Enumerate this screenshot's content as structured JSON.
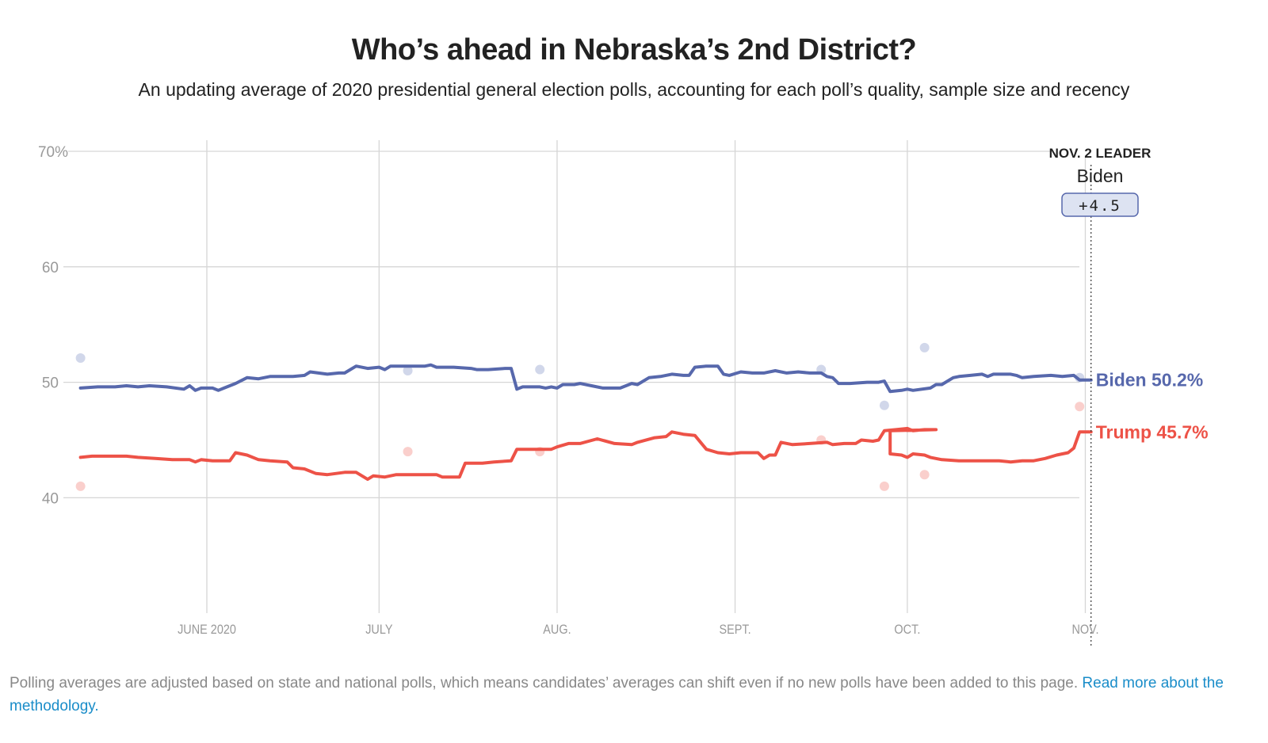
{
  "header": {
    "title": "Who’s ahead in Nebraska’s 2nd District?",
    "subtitle": "An updating average of 2020 presidential general election polls, accounting for each poll’s quality, sample size and recency"
  },
  "leader": {
    "label": "NOV. 2 LEADER",
    "name": "Biden",
    "margin": "+4.5"
  },
  "footnote": {
    "text": "Polling averages are adjusted based on state and national polls, which means candidates’ averages can shift even if no new polls have been added to this page. ",
    "link_text": "Read more about the methodology."
  },
  "chart_data": {
    "type": "line",
    "title": "Who’s ahead in Nebraska’s 2nd District?",
    "xlabel": "",
    "ylabel": "",
    "ylim": [
      30,
      70
    ],
    "xlim": [
      "2020-05-10",
      "2020-11-02"
    ],
    "grid": true,
    "y_ticks": [
      {
        "value": 70,
        "label": "70%"
      },
      {
        "value": 60,
        "label": "60"
      },
      {
        "value": 50,
        "label": "50"
      },
      {
        "value": 40,
        "label": "40"
      }
    ],
    "x_ticks": [
      {
        "date": "2020-06-01",
        "label": "JUNE 2020"
      },
      {
        "date": "2020-07-01",
        "label": "JULY"
      },
      {
        "date": "2020-08-01",
        "label": "AUG."
      },
      {
        "date": "2020-09-01",
        "label": "SEPT."
      },
      {
        "date": "2020-10-01",
        "label": "OCT."
      },
      {
        "date": "2020-11-01",
        "label": "NOV."
      }
    ],
    "marker_date": "2020-11-02",
    "series": [
      {
        "name": "Biden",
        "color": "#5768ac",
        "end_label": "Biden 50.2%",
        "points": [
          [
            "2020-05-10",
            49.5
          ],
          [
            "2020-05-13",
            49.6
          ],
          [
            "2020-05-16",
            49.6
          ],
          [
            "2020-05-18",
            49.7
          ],
          [
            "2020-05-20",
            49.6
          ],
          [
            "2020-05-22",
            49.7
          ],
          [
            "2020-05-25",
            49.6
          ],
          [
            "2020-05-28",
            49.4
          ],
          [
            "2020-05-29",
            49.7
          ],
          [
            "2020-05-30",
            49.3
          ],
          [
            "2020-05-31",
            49.5
          ],
          [
            "2020-06-02",
            49.5
          ],
          [
            "2020-06-03",
            49.3
          ],
          [
            "2020-06-04",
            49.5
          ],
          [
            "2020-06-06",
            49.9
          ],
          [
            "2020-06-08",
            50.4
          ],
          [
            "2020-06-10",
            50.3
          ],
          [
            "2020-06-12",
            50.5
          ],
          [
            "2020-06-16",
            50.5
          ],
          [
            "2020-06-18",
            50.6
          ],
          [
            "2020-06-19",
            50.9
          ],
          [
            "2020-06-22",
            50.7
          ],
          [
            "2020-06-24",
            50.8
          ],
          [
            "2020-06-25",
            50.8
          ],
          [
            "2020-06-27",
            51.4
          ],
          [
            "2020-06-29",
            51.2
          ],
          [
            "2020-07-01",
            51.3
          ],
          [
            "2020-07-02",
            51.1
          ],
          [
            "2020-07-03",
            51.4
          ],
          [
            "2020-07-05",
            51.4
          ],
          [
            "2020-07-09",
            51.4
          ],
          [
            "2020-07-10",
            51.5
          ],
          [
            "2020-07-11",
            51.3
          ],
          [
            "2020-07-14",
            51.3
          ],
          [
            "2020-07-17",
            51.2
          ],
          [
            "2020-07-18",
            51.1
          ],
          [
            "2020-07-20",
            51.1
          ],
          [
            "2020-07-23",
            51.2
          ],
          [
            "2020-07-24",
            51.2
          ],
          [
            "2020-07-25",
            49.4
          ],
          [
            "2020-07-26",
            49.6
          ],
          [
            "2020-07-29",
            49.6
          ],
          [
            "2020-07-30",
            49.5
          ],
          [
            "2020-07-31",
            49.6
          ],
          [
            "2020-08-01",
            49.5
          ],
          [
            "2020-08-02",
            49.8
          ],
          [
            "2020-08-04",
            49.8
          ],
          [
            "2020-08-05",
            49.9
          ],
          [
            "2020-08-07",
            49.7
          ],
          [
            "2020-08-09",
            49.5
          ],
          [
            "2020-08-12",
            49.5
          ],
          [
            "2020-08-13",
            49.7
          ],
          [
            "2020-08-14",
            49.9
          ],
          [
            "2020-08-15",
            49.8
          ],
          [
            "2020-08-17",
            50.4
          ],
          [
            "2020-08-19",
            50.5
          ],
          [
            "2020-08-21",
            50.7
          ],
          [
            "2020-08-23",
            50.6
          ],
          [
            "2020-08-24",
            50.6
          ],
          [
            "2020-08-25",
            51.3
          ],
          [
            "2020-08-27",
            51.4
          ],
          [
            "2020-08-29",
            51.4
          ],
          [
            "2020-08-30",
            50.7
          ],
          [
            "2020-08-31",
            50.6
          ],
          [
            "2020-09-02",
            50.9
          ],
          [
            "2020-09-04",
            50.8
          ],
          [
            "2020-09-06",
            50.8
          ],
          [
            "2020-09-08",
            51.0
          ],
          [
            "2020-09-10",
            50.8
          ],
          [
            "2020-09-12",
            50.9
          ],
          [
            "2020-09-14",
            50.8
          ],
          [
            "2020-09-16",
            50.8
          ],
          [
            "2020-09-17",
            50.5
          ],
          [
            "2020-09-18",
            50.4
          ],
          [
            "2020-09-19",
            49.9
          ],
          [
            "2020-09-21",
            49.9
          ],
          [
            "2020-09-24",
            50.0
          ],
          [
            "2020-09-26",
            50.0
          ],
          [
            "2020-09-27",
            50.1
          ],
          [
            "2020-09-28",
            49.2
          ],
          [
            "2020-09-30",
            49.3
          ],
          [
            "2020-10-01",
            49.4
          ],
          [
            "2020-10-02",
            49.3
          ],
          [
            "2020-10-05",
            49.5
          ],
          [
            "2020-10-06",
            49.8
          ],
          [
            "2020-10-07",
            49.8
          ],
          [
            "2020-10-09",
            50.4
          ],
          [
            "2020-10-10",
            50.5
          ],
          [
            "2020-10-12",
            50.6
          ],
          [
            "2020-10-14",
            50.7
          ],
          [
            "2020-10-15",
            50.5
          ],
          [
            "2020-10-16",
            50.7
          ],
          [
            "2020-10-19",
            50.7
          ],
          [
            "2020-10-20",
            50.6
          ],
          [
            "2020-10-21",
            50.4
          ],
          [
            "2020-10-23",
            50.5
          ],
          [
            "2020-10-26",
            50.6
          ],
          [
            "2020-10-28",
            50.5
          ],
          [
            "2020-10-30",
            50.6
          ],
          [
            "2020-10-31",
            50.2
          ],
          [
            "2020-11-02",
            50.2
          ]
        ],
        "polls": [
          [
            "2020-05-10",
            52.1
          ],
          [
            "2020-07-06",
            51.0
          ],
          [
            "2020-07-29",
            51.1
          ],
          [
            "2020-09-16",
            51.1
          ],
          [
            "2020-09-27",
            48.0
          ],
          [
            "2020-10-04",
            53.0
          ],
          [
            "2020-10-31",
            50.4
          ]
        ]
      },
      {
        "name": "Trump",
        "color": "#ed5247",
        "end_label": "Trump 45.7%",
        "points": [
          [
            "2020-05-10",
            43.5
          ],
          [
            "2020-05-12",
            43.6
          ],
          [
            "2020-05-16",
            43.6
          ],
          [
            "2020-05-18",
            43.6
          ],
          [
            "2020-05-20",
            43.5
          ],
          [
            "2020-05-23",
            43.4
          ],
          [
            "2020-05-26",
            43.3
          ],
          [
            "2020-05-29",
            43.3
          ],
          [
            "2020-05-30",
            43.1
          ],
          [
            "2020-05-31",
            43.3
          ],
          [
            "2020-06-02",
            43.2
          ],
          [
            "2020-06-04",
            43.2
          ],
          [
            "2020-06-05",
            43.2
          ],
          [
            "2020-06-06",
            43.9
          ],
          [
            "2020-06-08",
            43.7
          ],
          [
            "2020-06-10",
            43.3
          ],
          [
            "2020-06-12",
            43.2
          ],
          [
            "2020-06-15",
            43.1
          ],
          [
            "2020-06-16",
            42.6
          ],
          [
            "2020-06-18",
            42.5
          ],
          [
            "2020-06-20",
            42.1
          ],
          [
            "2020-06-22",
            42.0
          ],
          [
            "2020-06-25",
            42.2
          ],
          [
            "2020-06-27",
            42.2
          ],
          [
            "2020-06-29",
            41.6
          ],
          [
            "2020-06-30",
            41.9
          ],
          [
            "2020-07-02",
            41.8
          ],
          [
            "2020-07-04",
            42.0
          ],
          [
            "2020-07-07",
            42.0
          ],
          [
            "2020-07-11",
            42.0
          ],
          [
            "2020-07-12",
            41.8
          ],
          [
            "2020-07-15",
            41.8
          ],
          [
            "2020-07-16",
            43.0
          ],
          [
            "2020-07-19",
            43.0
          ],
          [
            "2020-07-21",
            43.1
          ],
          [
            "2020-07-24",
            43.2
          ],
          [
            "2020-07-25",
            44.2
          ],
          [
            "2020-07-28",
            44.2
          ],
          [
            "2020-07-31",
            44.2
          ],
          [
            "2020-08-01",
            44.4
          ],
          [
            "2020-08-03",
            44.7
          ],
          [
            "2020-08-05",
            44.7
          ],
          [
            "2020-08-08",
            45.1
          ],
          [
            "2020-08-11",
            44.7
          ],
          [
            "2020-08-14",
            44.6
          ],
          [
            "2020-08-15",
            44.8
          ],
          [
            "2020-08-18",
            45.2
          ],
          [
            "2020-08-20",
            45.3
          ],
          [
            "2020-08-21",
            45.7
          ],
          [
            "2020-08-23",
            45.5
          ],
          [
            "2020-08-25",
            45.4
          ],
          [
            "2020-08-27",
            44.2
          ],
          [
            "2020-08-29",
            43.9
          ],
          [
            "2020-08-31",
            43.8
          ],
          [
            "2020-09-02",
            43.9
          ],
          [
            "2020-09-05",
            43.9
          ],
          [
            "2020-09-06",
            43.4
          ],
          [
            "2020-09-07",
            43.7
          ],
          [
            "2020-09-08",
            43.7
          ],
          [
            "2020-09-09",
            44.8
          ],
          [
            "2020-09-11",
            44.6
          ],
          [
            "2020-09-14",
            44.7
          ],
          [
            "2020-09-17",
            44.8
          ],
          [
            "2020-09-18",
            44.6
          ],
          [
            "2020-09-20",
            44.7
          ],
          [
            "2020-09-22",
            44.7
          ],
          [
            "2020-09-23",
            45.0
          ],
          [
            "2020-09-25",
            44.9
          ],
          [
            "2020-09-26",
            45.0
          ],
          [
            "2020-09-27",
            45.8
          ],
          [
            "2020-09-29",
            45.9
          ],
          [
            "2020-10-01",
            46.0
          ],
          [
            "2020-10-02",
            45.8
          ],
          [
            "2020-10-04",
            45.9
          ],
          [
            "2020-10-06",
            45.9
          ],
          [
            "2020-09-28",
            45.8
          ],
          [
            "2020-09-28",
            43.8
          ],
          [
            "2020-09-30",
            43.7
          ],
          [
            "2020-10-01",
            43.5
          ],
          [
            "2020-10-02",
            43.8
          ],
          [
            "2020-10-04",
            43.7
          ],
          [
            "2020-10-05",
            43.5
          ],
          [
            "2020-10-07",
            43.3
          ],
          [
            "2020-10-10",
            43.2
          ],
          [
            "2020-10-14",
            43.2
          ],
          [
            "2020-10-17",
            43.2
          ],
          [
            "2020-10-19",
            43.1
          ],
          [
            "2020-10-21",
            43.2
          ],
          [
            "2020-10-23",
            43.2
          ],
          [
            "2020-10-25",
            43.4
          ],
          [
            "2020-10-27",
            43.7
          ],
          [
            "2020-10-29",
            43.9
          ],
          [
            "2020-10-30",
            44.3
          ],
          [
            "2020-10-31",
            45.7
          ],
          [
            "2020-11-02",
            45.7
          ]
        ],
        "polls": [
          [
            "2020-05-10",
            41.0
          ],
          [
            "2020-07-06",
            44.0
          ],
          [
            "2020-07-29",
            44.0
          ],
          [
            "2020-09-16",
            45.0
          ],
          [
            "2020-09-27",
            41.0
          ],
          [
            "2020-10-04",
            42.0
          ],
          [
            "2020-10-31",
            47.9
          ]
        ]
      }
    ]
  }
}
